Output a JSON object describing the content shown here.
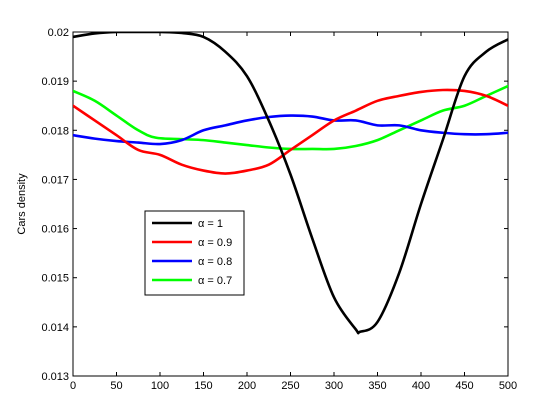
{
  "chart_data": {
    "type": "line",
    "title": "",
    "xlabel": "",
    "ylabel": "Cars density",
    "xlim": [
      0,
      500
    ],
    "ylim": [
      0.013,
      0.02
    ],
    "xticks": [
      0,
      50,
      100,
      150,
      200,
      250,
      300,
      350,
      400,
      450,
      500
    ],
    "yticks": [
      0.013,
      0.014,
      0.015,
      0.016,
      0.017,
      0.018,
      0.019,
      0.02
    ],
    "xtick_labels": [
      "0",
      "50",
      "100",
      "150",
      "200",
      "250",
      "300",
      "350",
      "400",
      "450",
      "500"
    ],
    "ytick_labels": [
      "0.013",
      "0.014",
      "0.015",
      "0.016",
      "0.017",
      "0.018",
      "0.019",
      "0.02"
    ],
    "grid": false,
    "legend_position": "left",
    "series": [
      {
        "name": "α = 1",
        "color": "#000000",
        "x": [
          0,
          25,
          50,
          75,
          100,
          125,
          150,
          175,
          200,
          225,
          250,
          275,
          300,
          325,
          330,
          350,
          375,
          400,
          425,
          450,
          475,
          500
        ],
        "y": [
          0.0199,
          0.01997,
          0.02,
          0.02,
          0.02,
          0.01998,
          0.0199,
          0.0196,
          0.0191,
          0.0182,
          0.0171,
          0.0158,
          0.0146,
          0.01395,
          0.0139,
          0.0141,
          0.0151,
          0.0165,
          0.0178,
          0.0191,
          0.0196,
          0.01985
        ]
      },
      {
        "name": "α = 0.9",
        "color": "#ff0000",
        "x": [
          0,
          25,
          50,
          75,
          100,
          125,
          150,
          175,
          200,
          225,
          250,
          275,
          300,
          325,
          350,
          375,
          400,
          425,
          450,
          475,
          500
        ],
        "y": [
          0.0185,
          0.0182,
          0.0179,
          0.0176,
          0.0175,
          0.0173,
          0.01718,
          0.01712,
          0.01718,
          0.0173,
          0.0176,
          0.0179,
          0.0182,
          0.0184,
          0.0186,
          0.0187,
          0.01878,
          0.01882,
          0.0188,
          0.0187,
          0.0185
        ]
      },
      {
        "name": "α = 0.8",
        "color": "#0000ff",
        "x": [
          0,
          25,
          50,
          75,
          100,
          125,
          150,
          175,
          200,
          225,
          250,
          275,
          300,
          325,
          350,
          375,
          400,
          425,
          450,
          475,
          500
        ],
        "y": [
          0.0179,
          0.01783,
          0.01778,
          0.01775,
          0.01772,
          0.0178,
          0.018,
          0.0181,
          0.0182,
          0.01827,
          0.0183,
          0.01828,
          0.0182,
          0.0182,
          0.0181,
          0.0181,
          0.018,
          0.01795,
          0.01792,
          0.01792,
          0.01795
        ]
      },
      {
        "name": "α = 0.7",
        "color": "#00ff00",
        "x": [
          0,
          25,
          50,
          75,
          95,
          125,
          150,
          175,
          200,
          225,
          250,
          275,
          300,
          325,
          350,
          375,
          400,
          425,
          450,
          475,
          500
        ],
        "y": [
          0.0188,
          0.0186,
          0.0183,
          0.018,
          0.01785,
          0.01782,
          0.0178,
          0.01775,
          0.0177,
          0.01765,
          0.01762,
          0.01762,
          0.01762,
          0.01768,
          0.0178,
          0.018,
          0.0182,
          0.0184,
          0.0185,
          0.0187,
          0.0189
        ]
      }
    ]
  }
}
